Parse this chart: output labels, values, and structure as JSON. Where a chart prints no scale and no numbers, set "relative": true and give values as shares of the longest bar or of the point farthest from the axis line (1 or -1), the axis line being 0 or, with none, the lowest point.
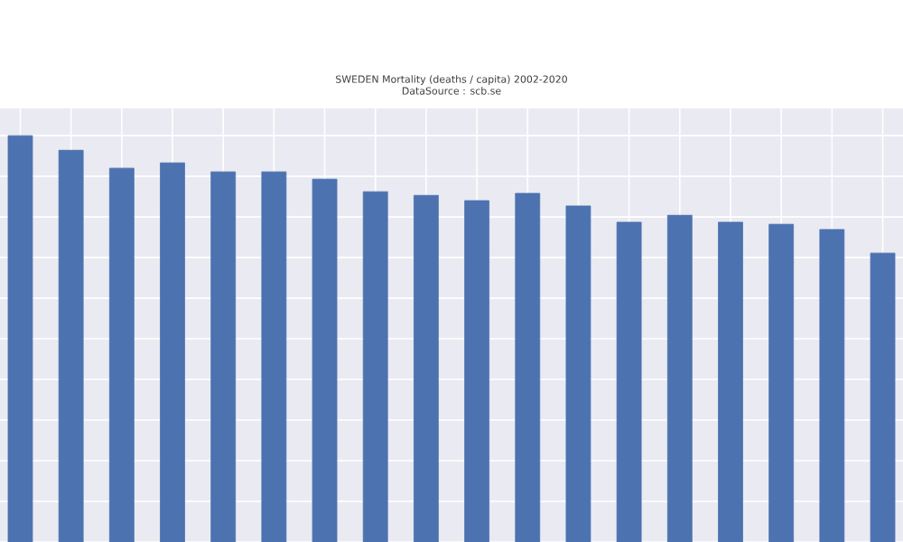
{
  "chart_data": {
    "type": "bar",
    "title": "SWEDEN Mortality (deaths / capita) 2002-2020",
    "subtitle": "DataSource : scb.se",
    "relative": true,
    "categories": [
      null,
      null,
      null,
      null,
      null,
      null,
      null,
      null,
      null,
      null,
      null,
      null,
      null,
      null,
      null,
      null,
      null,
      null
    ],
    "series": [
      {
        "color": "#4c72b0",
        "values": [
          1,
          0.964,
          0.92,
          0.933,
          0.911,
          0.911,
          0.893,
          0.862,
          0.853,
          0.84,
          0.858,
          0.827,
          0.787,
          0.804,
          0.787,
          0.782,
          0.769,
          0.711
        ]
      }
    ],
    "grid": true
  }
}
